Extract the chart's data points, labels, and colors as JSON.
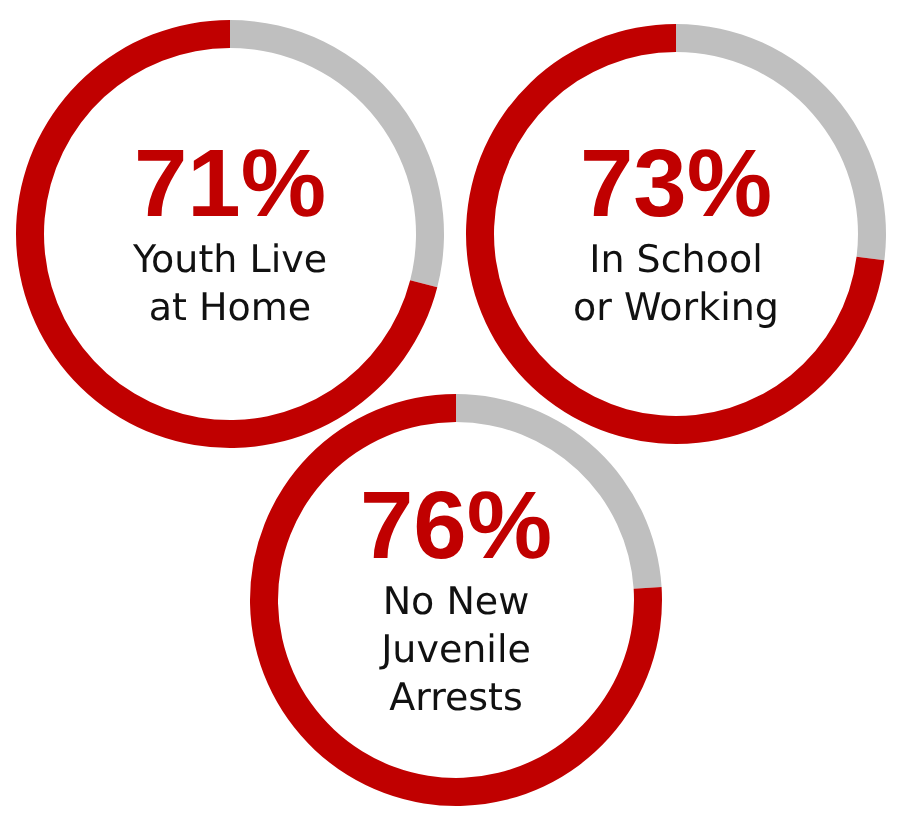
{
  "chart_data": [
    {
      "type": "donut",
      "categories": [
        null,
        "Youth Live at Home"
      ],
      "values": [
        29,
        71
      ],
      "colors": [
        "#bfbfbf",
        "#c00000"
      ],
      "value_labels": [
        null,
        "71%"
      ]
    },
    {
      "type": "donut",
      "categories": [
        null,
        "In School or Working"
      ],
      "values": [
        27,
        73
      ],
      "colors": [
        "#bfbfbf",
        "#c00000"
      ],
      "value_labels": [
        null,
        "73%"
      ]
    },
    {
      "type": "donut",
      "categories": [
        null,
        "No New Juvenile Arrests"
      ],
      "values": [
        24,
        76
      ],
      "colors": [
        "#bfbfbf",
        "#c00000"
      ],
      "value_labels": [
        null,
        "76%"
      ]
    }
  ]
}
